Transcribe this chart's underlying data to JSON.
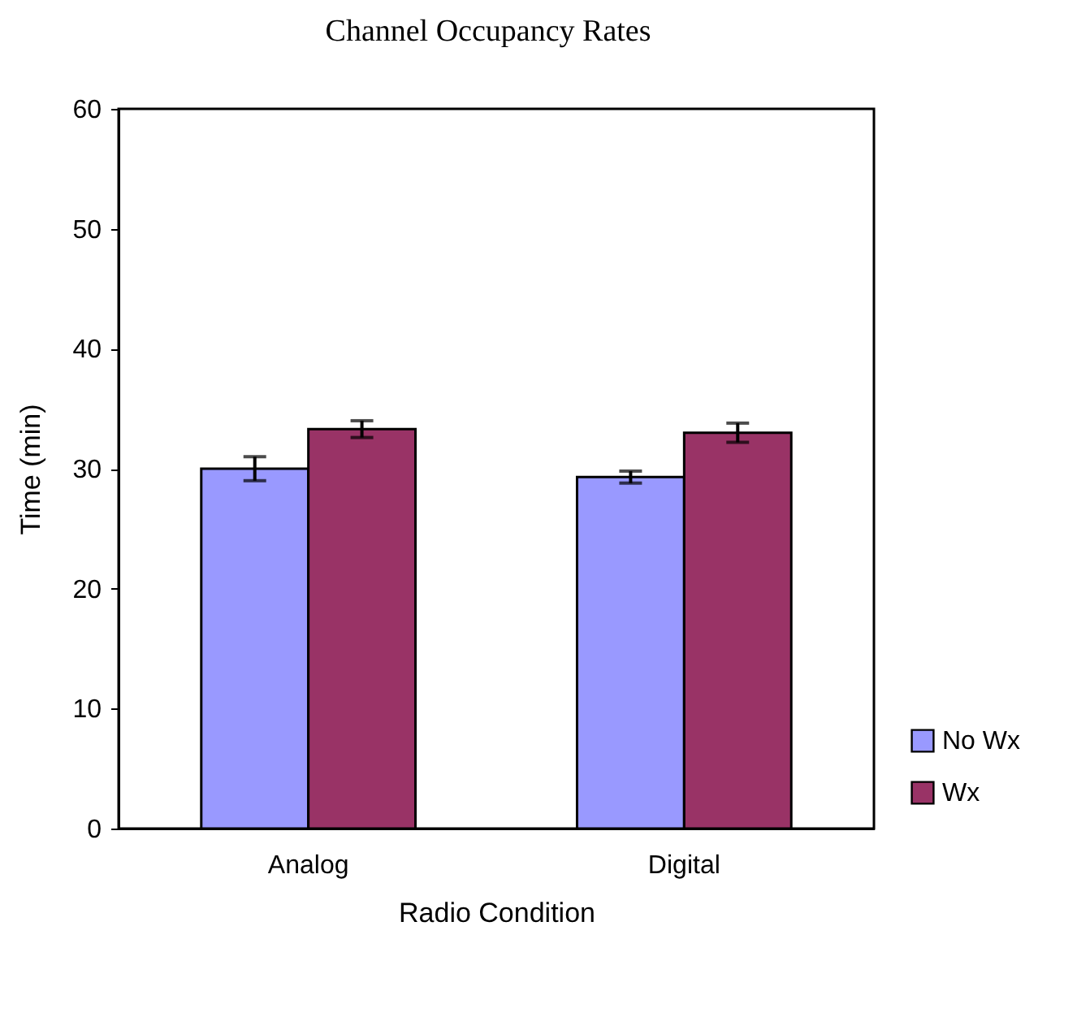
{
  "chart_data": {
    "type": "bar",
    "title": "Channel Occupancy Rates",
    "xlabel": "Radio Condition",
    "ylabel": "Time (min)",
    "categories": [
      "Analog",
      "Digital"
    ],
    "series": [
      {
        "name": "No Wx",
        "color": "#9999ff",
        "values": [
          30.0,
          29.3
        ],
        "errors": [
          1.0,
          0.5
        ]
      },
      {
        "name": "Wx",
        "color": "#993366",
        "values": [
          33.3,
          33.0
        ],
        "errors": [
          0.7,
          0.8
        ]
      }
    ],
    "ylim": [
      0,
      60
    ],
    "yticks": [
      0,
      10,
      20,
      30,
      40,
      50,
      60
    ],
    "grid": false,
    "legend": "bottom right"
  }
}
